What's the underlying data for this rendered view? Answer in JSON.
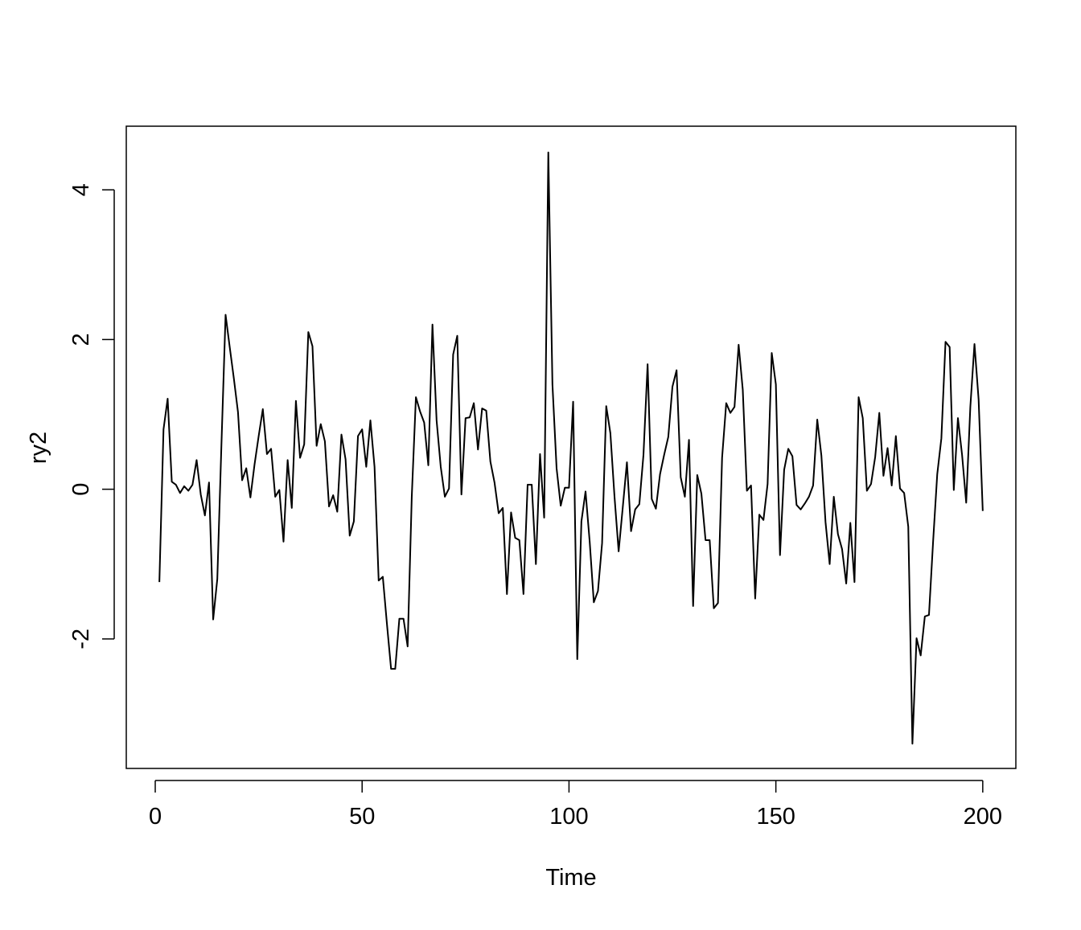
{
  "chart_data": {
    "type": "line",
    "title": "",
    "xlabel": "Time",
    "ylabel": "ry2",
    "xlim": [
      -7,
      208
    ],
    "ylim": [
      -3.73,
      4.85
    ],
    "x_ticks": [
      0,
      50,
      100,
      150,
      200
    ],
    "y_ticks": [
      -2,
      0,
      2,
      4
    ],
    "x_tick_labels": [
      "0",
      "50",
      "100",
      "150",
      "200"
    ],
    "y_tick_labels": [
      "-2",
      "0",
      "2",
      "4"
    ],
    "grid": false,
    "legend": "none",
    "line_color": "#000000",
    "series": [
      {
        "name": "",
        "x": [
          1,
          2,
          3,
          4,
          5,
          6,
          7,
          8,
          9,
          10,
          11,
          12,
          13,
          14,
          15,
          16,
          17,
          18,
          19,
          20,
          21,
          22,
          23,
          24,
          25,
          26,
          27,
          28,
          29,
          30,
          31,
          32,
          33,
          34,
          35,
          36,
          37,
          38,
          39,
          40,
          41,
          42,
          43,
          44,
          45,
          46,
          47,
          48,
          49,
          50,
          51,
          52,
          53,
          54,
          55,
          56,
          57,
          58,
          59,
          60,
          61,
          62,
          63,
          64,
          65,
          66,
          67,
          68,
          69,
          70,
          71,
          72,
          73,
          74,
          75,
          76,
          77,
          78,
          79,
          80,
          81,
          82,
          83,
          84,
          85,
          86,
          87,
          88,
          89,
          90,
          91,
          92,
          93,
          94,
          95,
          96,
          97,
          98,
          99,
          100,
          101,
          102,
          103,
          104,
          105,
          106,
          107,
          108,
          109,
          110,
          111,
          112,
          113,
          114,
          115,
          116,
          117,
          118,
          119,
          120,
          121,
          122,
          123,
          124,
          125,
          126,
          127,
          128,
          129,
          130,
          131,
          132,
          133,
          134,
          135,
          136,
          137,
          138,
          139,
          140,
          141,
          142,
          143,
          144,
          145,
          146,
          147,
          148,
          149,
          150,
          151,
          152,
          153,
          154,
          155,
          156,
          157,
          158,
          159,
          160,
          161,
          162,
          163,
          164,
          165,
          166,
          167,
          168,
          169,
          170,
          171,
          172,
          173,
          174,
          175,
          176,
          177,
          178,
          179,
          180,
          181,
          182,
          183,
          184,
          185,
          186,
          187,
          188,
          189,
          190,
          191,
          192,
          193,
          194,
          195,
          196,
          197,
          198,
          199,
          200
        ],
        "values": [
          -1.24,
          0.8,
          1.21,
          0.1,
          0.06,
          -0.05,
          0.04,
          -0.02,
          0.06,
          0.39,
          -0.07,
          -0.35,
          0.09,
          -1.74,
          -1.2,
          0.6,
          2.33,
          1.9,
          1.48,
          1.03,
          0.12,
          0.28,
          -0.11,
          0.33,
          0.71,
          1.07,
          0.47,
          0.54,
          -0.1,
          -0.01,
          -0.7,
          0.39,
          -0.25,
          1.18,
          0.42,
          0.6,
          2.1,
          1.91,
          0.58,
          0.87,
          0.64,
          -0.23,
          -0.08,
          -0.3,
          0.73,
          0.4,
          -0.62,
          -0.43,
          0.71,
          0.8,
          0.3,
          0.92,
          0.3,
          -1.22,
          -1.17,
          -1.8,
          -2.4,
          -2.4,
          -1.73,
          -1.73,
          -2.1,
          -0.1,
          1.23,
          1.04,
          0.89,
          0.32,
          2.2,
          0.92,
          0.3,
          -0.1,
          0.01,
          1.8,
          2.05,
          -0.07,
          0.95,
          0.96,
          1.15,
          0.53,
          1.08,
          1.05,
          0.37,
          0.09,
          -0.32,
          -0.25,
          -1.4,
          -0.31,
          -0.65,
          -0.68,
          -1.4,
          0.06,
          0.06,
          -1.0,
          0.47,
          -0.38,
          4.5,
          1.4,
          0.28,
          -0.22,
          0.02,
          0.02,
          1.17,
          -2.27,
          -0.43,
          -0.03,
          -0.7,
          -1.51,
          -1.36,
          -0.72,
          1.11,
          0.75,
          -0.1,
          -0.83,
          -0.24,
          0.36,
          -0.56,
          -0.27,
          -0.2,
          0.46,
          1.67,
          -0.13,
          -0.26,
          0.2,
          0.46,
          0.7,
          1.37,
          1.59,
          0.16,
          -0.1,
          0.66,
          -1.56,
          0.19,
          -0.06,
          -0.68,
          -0.68,
          -1.59,
          -1.52,
          0.42,
          1.15,
          1.02,
          1.1,
          1.93,
          1.33,
          -0.02,
          0.05,
          -1.46,
          -0.34,
          -0.41,
          0.07,
          1.82,
          1.4,
          -0.88,
          0.26,
          0.54,
          0.44,
          -0.21,
          -0.27,
          -0.19,
          -0.1,
          0.05,
          0.93,
          0.45,
          -0.44,
          -1.0,
          -0.1,
          -0.6,
          -0.8,
          -1.26,
          -0.45,
          -1.24,
          1.23,
          0.95,
          -0.02,
          0.07,
          0.43,
          1.02,
          0.18,
          0.55,
          0.05,
          0.71,
          0.01,
          -0.05,
          -0.5,
          -3.4,
          -1.99,
          -2.22,
          -1.7,
          -1.68,
          -0.7,
          0.2,
          0.68,
          1.97,
          1.9,
          -0.01,
          0.95,
          0.46,
          -0.18,
          1.1,
          1.94,
          1.2,
          -0.29
        ]
      }
    ]
  }
}
